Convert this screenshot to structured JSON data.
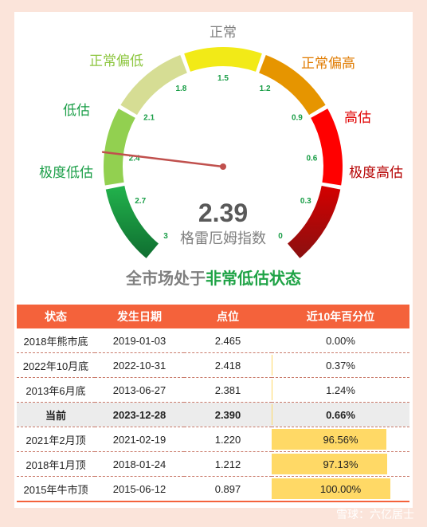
{
  "gauge": {
    "value_text": "2.39",
    "value": 2.39,
    "caption": "格雷厄姆指数",
    "scale_min": 0,
    "scale_max": 3,
    "ticks": [
      "3",
      "2.7",
      "2.4",
      "2.1",
      "1.8",
      "1.5",
      "1.2",
      "0.9",
      "0.6",
      "0.3",
      "0"
    ],
    "zones": [
      {
        "label": "极度低估",
        "color": "#1a9e47",
        "label_color": "#1a9e47"
      },
      {
        "label": "低估",
        "color": "#92d050",
        "label_color": "#1a9e47"
      },
      {
        "label": "正常偏低",
        "color": "#d6dd94",
        "label_color": "#8dc63f"
      },
      {
        "label": "正常",
        "color": "#f2ea17",
        "label_color": "#7f7f7f"
      },
      {
        "label": "正常偏高",
        "color": "#e69500",
        "label_color": "#e07b00"
      },
      {
        "label": "高估",
        "color": "#ff0000",
        "label_color": "#e00000"
      },
      {
        "label": "极度高估",
        "color": "#b50000",
        "label_color": "#b50000"
      }
    ],
    "needle_color": "#c0504d"
  },
  "headline": {
    "prefix": "全市场处于",
    "highlight": "非常低估状态"
  },
  "table": {
    "headers": [
      "状态",
      "发生日期",
      "点位",
      "近10年百分位"
    ],
    "rows": [
      {
        "state": "2018年熊市底",
        "date": "2019-01-03",
        "level": "2.465",
        "pct": "0.00%",
        "pct_value": 0.0
      },
      {
        "state": "2022年10月底",
        "date": "2022-10-31",
        "level": "2.418",
        "pct": "0.37%",
        "pct_value": 0.37
      },
      {
        "state": "2013年6月底",
        "date": "2013-06-27",
        "level": "2.381",
        "pct": "1.24%",
        "pct_value": 1.24
      },
      {
        "state": "当前",
        "date": "2023-12-28",
        "level": "2.390",
        "pct": "0.66%",
        "pct_value": 0.66
      },
      {
        "state": "2021年2月顶",
        "date": "2021-02-19",
        "level": "1.220",
        "pct": "96.56%",
        "pct_value": 96.56
      },
      {
        "state": "2018年1月顶",
        "date": "2018-01-24",
        "level": "1.212",
        "pct": "97.13%",
        "pct_value": 97.13
      },
      {
        "state": "2015年牛市顶",
        "date": "2015-06-12",
        "level": "0.897",
        "pct": "100.00%",
        "pct_value": 100.0
      }
    ]
  },
  "watermark": "雪球：六亿居士",
  "chart_data": {
    "type": "table",
    "columns": [
      "状态",
      "发生日期",
      "点位",
      "近10年百分位"
    ],
    "rows": [
      [
        "2018年熊市底",
        "2019-01-03",
        2.465,
        0.0
      ],
      [
        "2022年10月底",
        "2022-10-31",
        2.418,
        0.37
      ],
      [
        "2013年6月底",
        "2013-06-27",
        2.381,
        1.24
      ],
      [
        "当前",
        "2023-12-28",
        2.39,
        0.66
      ],
      [
        "2021年2月顶",
        "2021-02-19",
        1.22,
        96.56
      ],
      [
        "2018年1月顶",
        "2018-01-24",
        1.212,
        97.13
      ],
      [
        "2015年牛市顶",
        "2015-06-12",
        0.897,
        100.0
      ]
    ],
    "gauge": {
      "value": 2.39,
      "min": 0,
      "max": 3,
      "reversed": true
    }
  }
}
